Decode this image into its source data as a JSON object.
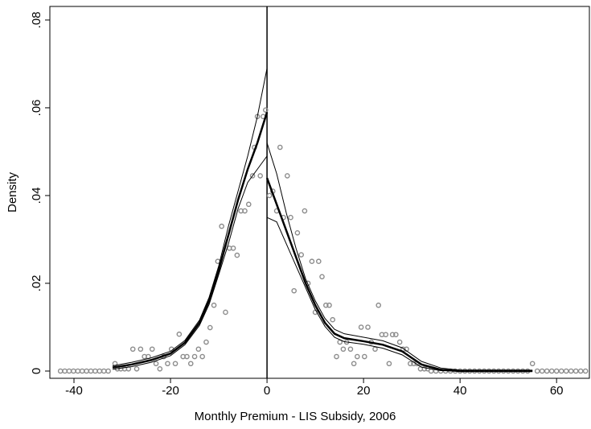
{
  "chart_data": {
    "type": "scatter",
    "x_label": "Monthly Premium - LIS Subsidy, 2006",
    "y_label": "Density",
    "xlim": [
      -45,
      66.8
    ],
    "ylim": [
      -0.00165,
      0.0831
    ],
    "xticks": [
      -40,
      -20,
      0,
      20,
      40,
      60
    ],
    "yticks": [
      0,
      {
        "value": 0.02,
        "label": ".02"
      },
      {
        "value": 0.04,
        "label": ".04"
      },
      {
        "value": 0.06,
        "label": ".06"
      },
      {
        "value": 0.08,
        "label": ".08"
      }
    ],
    "vline": 0,
    "series": [
      {
        "mode": "markers",
        "color": "#8c8c8c",
        "x": [
          -42.8,
          -41.9,
          -41.0,
          -40.1,
          -39.2,
          -38.3,
          -37.4,
          -36.5,
          -35.6,
          -34.7,
          -33.8,
          -32.9,
          -31.5,
          -31.0,
          -30.3,
          -29.5,
          -28.7,
          -27.8,
          -27.0,
          -26.2,
          -25.4,
          -24.6,
          -23.8,
          -23.0,
          -22.2,
          -21.4,
          -20.6,
          -19.8,
          -19.0,
          -18.2,
          -17.4,
          -16.6,
          -15.8,
          -15.0,
          -14.2,
          -13.4,
          -12.6,
          -11.8,
          -11.0,
          -10.2,
          -9.4,
          -8.6,
          -7.8,
          -7.0,
          -6.2,
          -5.4,
          -4.6,
          -3.8,
          -3.0,
          -2.6,
          -2.0,
          -1.4,
          -0.8,
          -0.3
        ],
        "values": [
          0,
          0,
          0,
          0,
          0,
          0,
          0,
          0,
          0,
          0,
          0,
          0,
          0.0017,
          0.0005,
          0.0005,
          0.0005,
          0.0005,
          0.005,
          0.0005,
          0.005,
          0.0033,
          0.0033,
          0.005,
          0.0017,
          0.0005,
          0.0033,
          0.0017,
          0.005,
          0.0017,
          0.0084,
          0.0033,
          0.0033,
          0.0017,
          0.0033,
          0.005,
          0.0033,
          0.0066,
          0.0099,
          0.015,
          0.025,
          0.033,
          0.0134,
          0.028,
          0.028,
          0.0264,
          0.0365,
          0.0365,
          0.038,
          0.0445,
          0.051,
          0.058,
          0.0445,
          0.058,
          0.0595
        ]
      },
      {
        "mode": "markers",
        "color": "#8c8c8c",
        "x": [
          0.5,
          1.2,
          2.0,
          2.7,
          3.4,
          4.2,
          4.9,
          5.6,
          6.3,
          7.1,
          7.8,
          8.5,
          9.3,
          10.0,
          10.7,
          11.4,
          12.2,
          12.9,
          13.6,
          14.4,
          15.1,
          15.8,
          16.5,
          17.3,
          18.0,
          18.7,
          19.5,
          20.2,
          20.9,
          21.6,
          22.4,
          23.1,
          23.8,
          24.6,
          25.3,
          26.0,
          26.7,
          27.5,
          28.2,
          28.9,
          29.7,
          30.4,
          31.1,
          31.8,
          32.6,
          33.3,
          34,
          35,
          36,
          37,
          38,
          39,
          40,
          41,
          42,
          43,
          44,
          45,
          46,
          47,
          48,
          49,
          50,
          51,
          52,
          53,
          54,
          55,
          56,
          57,
          58,
          59,
          60,
          61,
          62,
          63,
          64,
          65,
          66
        ],
        "values": [
          0.04,
          0.041,
          0.0365,
          0.051,
          0.035,
          0.0445,
          0.035,
          0.0183,
          0.0315,
          0.0265,
          0.0365,
          0.02,
          0.025,
          0.0134,
          0.025,
          0.0215,
          0.015,
          0.015,
          0.0117,
          0.0033,
          0.0066,
          0.005,
          0.0066,
          0.005,
          0.0017,
          0.0033,
          0.01,
          0.0033,
          0.01,
          0.0066,
          0.005,
          0.015,
          0.0083,
          0.0083,
          0.0017,
          0.0083,
          0.0083,
          0.0066,
          0.005,
          0.005,
          0.0017,
          0.0017,
          0.0017,
          0.0005,
          0.0005,
          0.0005,
          0,
          0,
          0,
          0,
          0,
          0,
          0,
          0,
          0,
          0,
          0,
          0,
          0,
          0,
          0,
          0,
          0,
          0,
          0,
          0,
          0,
          0.0017,
          0,
          0,
          0,
          0,
          0,
          0,
          0,
          0,
          0,
          0,
          0
        ]
      },
      {
        "mode": "line",
        "color": "#000000",
        "width": 2.5,
        "x": [
          -32,
          -28,
          -24,
          -20,
          -17,
          -14,
          -12,
          -10,
          -8,
          -6,
          -4,
          -2,
          0
        ],
        "values": [
          0.0008,
          0.0015,
          0.0025,
          0.004,
          0.0065,
          0.011,
          0.016,
          0.023,
          0.031,
          0.039,
          0.046,
          0.052,
          0.059
        ]
      },
      {
        "mode": "line",
        "color": "#000000",
        "width": 1,
        "x": [
          -32,
          -28,
          -24,
          -20,
          -17,
          -14,
          -12,
          -10,
          -8,
          -6,
          -4,
          -2,
          0
        ],
        "values": [
          0.0012,
          0.002,
          0.003,
          0.0045,
          0.007,
          0.0116,
          0.0168,
          0.024,
          0.033,
          0.041,
          0.049,
          0.058,
          0.069
        ]
      },
      {
        "mode": "line",
        "color": "#000000",
        "width": 1,
        "x": [
          -32,
          -28,
          -24,
          -20,
          -17,
          -14,
          -12,
          -10,
          -8,
          -6,
          -4,
          -2,
          0
        ],
        "values": [
          0.0004,
          0.001,
          0.002,
          0.0035,
          0.006,
          0.0104,
          0.0152,
          0.022,
          0.029,
          0.037,
          0.043,
          0.046,
          0.049
        ]
      },
      {
        "mode": "line",
        "color": "#000000",
        "width": 2.5,
        "x": [
          0,
          2,
          4,
          6,
          8,
          10,
          12,
          14,
          16,
          20,
          24,
          28,
          32,
          36,
          40,
          55
        ],
        "values": [
          0.044,
          0.038,
          0.032,
          0.026,
          0.02,
          0.015,
          0.011,
          0.0085,
          0.0075,
          0.0068,
          0.006,
          0.0045,
          0.0015,
          0.0003,
          0,
          0
        ]
      },
      {
        "mode": "line",
        "color": "#000000",
        "width": 1,
        "x": [
          0,
          2,
          4,
          6,
          8,
          10,
          12,
          14,
          16,
          20,
          24,
          28,
          32,
          36,
          40,
          55
        ],
        "values": [
          0.052,
          0.045,
          0.036,
          0.028,
          0.021,
          0.016,
          0.012,
          0.0095,
          0.0085,
          0.0077,
          0.0069,
          0.0053,
          0.0022,
          0.0007,
          0.0002,
          0.0002
        ]
      },
      {
        "mode": "line",
        "color": "#000000",
        "width": 1,
        "x": [
          0,
          2,
          4,
          6,
          8,
          10,
          12,
          14,
          16,
          20,
          24,
          28,
          32,
          36,
          40,
          55
        ],
        "values": [
          0.035,
          0.034,
          0.029,
          0.024,
          0.019,
          0.014,
          0.0102,
          0.0077,
          0.0067,
          0.0061,
          0.0052,
          0.0037,
          0.0009,
          0.0001,
          0,
          0
        ]
      }
    ]
  }
}
